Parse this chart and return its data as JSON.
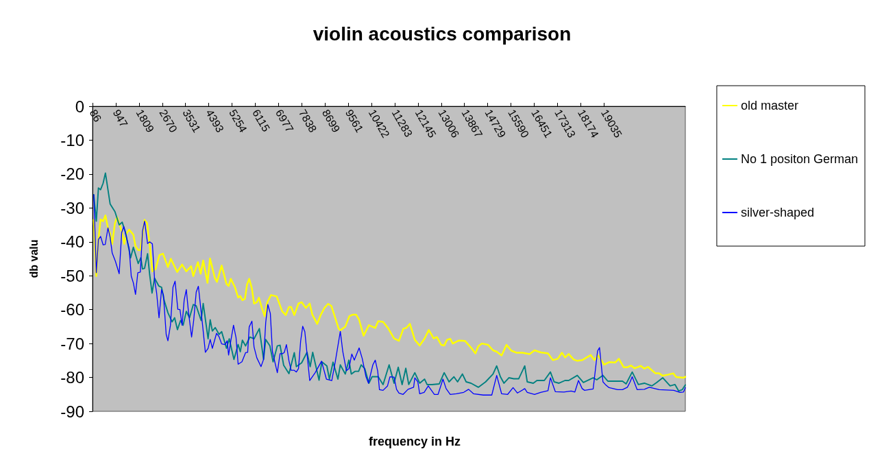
{
  "chart_data": {
    "type": "line",
    "title": "violin acoustics comparison",
    "xlabel": "frequency in Hz",
    "ylabel": "db valu",
    "xlim": [
      86,
      22050
    ],
    "xticks": [
      86,
      947,
      1809,
      2670,
      3531,
      4393,
      5254,
      6115,
      6977,
      7838,
      8699,
      9561,
      10422,
      11283,
      12145,
      13006,
      13867,
      14729,
      15590,
      16451,
      17313,
      18174,
      19035
    ],
    "ylim": [
      -90,
      0
    ],
    "yticks": [
      0,
      -10,
      -20,
      -30,
      -40,
      -50,
      -60,
      -70,
      -80,
      -90
    ],
    "grid": false,
    "legend": "right",
    "marker": "none",
    "line_style": "solid",
    "series": [
      {
        "name": "old master",
        "color": "#ffff00",
        "x": [
          133,
          227,
          291,
          385,
          479,
          564,
          658,
          738,
          815,
          917,
          997,
          1168,
          1262,
          1340,
          1444,
          1599,
          1679,
          1780,
          1858,
          2015,
          2109,
          2187,
          2305,
          2422,
          2564,
          2698,
          2879,
          2987,
          3091,
          3222,
          3404,
          3561,
          3740,
          3820,
          3992,
          4093,
          4187,
          4345,
          4439,
          4620,
          4698,
          4870,
          5050,
          5128,
          5208,
          5364,
          5481,
          5561,
          5639,
          5733,
          5811,
          5891,
          5992,
          6070,
          6173,
          6251,
          6361,
          6463,
          6564,
          6698,
          6910,
          7114,
          7246,
          7364,
          7444,
          7561,
          7717,
          7834,
          7992,
          8133,
          8227,
          8409,
          8545,
          8679,
          8815,
          8933,
          9086,
          9204,
          9267,
          9451,
          9604,
          9722,
          9856,
          9964,
          10129,
          10326,
          10444,
          10562,
          10670,
          10851,
          11032,
          11258,
          11439,
          11604,
          11710,
          11846,
          12027,
          12208,
          12390,
          12545,
          12726,
          12844,
          13006,
          13115,
          13223,
          13340,
          13432,
          13658,
          13884,
          14110,
          14272,
          14380,
          14517,
          14743,
          14924,
          15061,
          15242,
          15423,
          15604,
          15785,
          16011,
          16282,
          16463,
          16689,
          16962,
          17141,
          17322,
          17477,
          17595,
          17729,
          17910,
          18047,
          18228,
          18546,
          18680,
          18816,
          19042,
          19223,
          19449,
          19586,
          19767,
          19903,
          20040,
          20174,
          20400,
          20534,
          20670,
          20943,
          21080,
          21214,
          21395,
          21604,
          21712,
          21983,
          22050
        ],
        "values": [
          -33.5,
          -50.1,
          -40.3,
          -33.4,
          -33.9,
          -32.2,
          -35.9,
          -37.6,
          -40.6,
          -34.5,
          -32.7,
          -36.9,
          -40.6,
          -37.6,
          -36.4,
          -37.9,
          -41.3,
          -42.4,
          -42.4,
          -33.5,
          -34.5,
          -39.6,
          -48.7,
          -48,
          -43.9,
          -43.5,
          -47.4,
          -45,
          -46.7,
          -48.9,
          -46.7,
          -48.7,
          -47.2,
          -50.1,
          -46,
          -49.4,
          -45.5,
          -52.1,
          -44.9,
          -50.7,
          -51.8,
          -47,
          -52.4,
          -53,
          -50.9,
          -53.4,
          -56.4,
          -56,
          -57.2,
          -56.8,
          -52.6,
          -50.9,
          -53.8,
          -58.2,
          -57.8,
          -56.5,
          -59.5,
          -61.9,
          -57.8,
          -55.7,
          -56.1,
          -60.5,
          -61.6,
          -59.2,
          -59.2,
          -61.6,
          -58.2,
          -57.8,
          -59.5,
          -58.2,
          -61.4,
          -64.2,
          -61.5,
          -59.5,
          -58.3,
          -58.9,
          -62.6,
          -65.6,
          -66.1,
          -65,
          -61.9,
          -61.5,
          -61.5,
          -63,
          -67.7,
          -64.6,
          -65,
          -65.4,
          -63.4,
          -63.6,
          -65.4,
          -68.5,
          -69.2,
          -65.6,
          -65.4,
          -64.2,
          -68.9,
          -70.6,
          -68.5,
          -66,
          -68.5,
          -68.1,
          -70.4,
          -70.6,
          -68.9,
          -68.6,
          -70,
          -69.1,
          -69.2,
          -71.2,
          -72.9,
          -70.8,
          -70,
          -70.4,
          -72,
          -72.4,
          -73.5,
          -70.4,
          -72.1,
          -72.7,
          -72.7,
          -73.1,
          -72,
          -72.6,
          -72.9,
          -74.9,
          -74.5,
          -72.7,
          -74.1,
          -73.1,
          -74.7,
          -75.1,
          -74.9,
          -73.4,
          -74.9,
          -73.5,
          -76.2,
          -75.5,
          -75.6,
          -74.5,
          -77,
          -77,
          -76.5,
          -77.3,
          -76.6,
          -77.4,
          -76.9,
          -78.8,
          -78.8,
          -79.5,
          -79.2,
          -78.8,
          -79.9,
          -80.1,
          -79.8
        ]
      },
      {
        "name": "No 1 positon German",
        "color": "#008080",
        "x": [
          133,
          227,
          305,
          385,
          479,
          564,
          738,
          917,
          1074,
          1185,
          1309,
          1498,
          1599,
          1780,
          1874,
          1938,
          2015,
          2126,
          2204,
          2291,
          2385,
          2540,
          2644,
          2738,
          2879,
          3034,
          3128,
          3232,
          3349,
          3444,
          3561,
          3679,
          3820,
          3928,
          4110,
          4187,
          4368,
          4446,
          4526,
          4634,
          4775,
          4870,
          5050,
          5152,
          5326,
          5481,
          5561,
          5639,
          5757,
          5914,
          6070,
          6267,
          6423,
          6503,
          6658,
          6776,
          6933,
          7034,
          7168,
          7364,
          7561,
          7639,
          7834,
          8032,
          8150,
          8244,
          8479,
          8580,
          8768,
          8863,
          8997,
          9178,
          9267,
          9451,
          9585,
          9674,
          9811,
          9945,
          10039,
          10173,
          10326,
          10444,
          10670,
          10851,
          11075,
          11258,
          11413,
          11557,
          11693,
          11802,
          12027,
          12208,
          12390,
          12482,
          12663,
          12934,
          13115,
          13296,
          13475,
          13611,
          13792,
          13929,
          14110,
          14380,
          14651,
          14924,
          15061,
          15197,
          15331,
          15512,
          15694,
          15875,
          16101,
          16192,
          16416,
          16553,
          16825,
          17051,
          17188,
          17369,
          17593,
          17729,
          18047,
          18273,
          18635,
          18769,
          18997,
          19178,
          19722,
          19856,
          20082,
          20310,
          20534,
          20807,
          20988,
          21214,
          21486,
          21668,
          21802,
          21939,
          22050
        ],
        "values": [
          -26.1,
          -33.9,
          -24.1,
          -24.6,
          -22.7,
          -19.7,
          -28.8,
          -31.1,
          -35,
          -34.2,
          -37.2,
          -44.7,
          -41.6,
          -46.4,
          -44.7,
          -48,
          -47.8,
          -43.5,
          -49.7,
          -55.1,
          -50.7,
          -53,
          -53.4,
          -57.2,
          -60.9,
          -63.6,
          -62.4,
          -65.9,
          -63.2,
          -64.6,
          -60.5,
          -62.4,
          -58.5,
          -58.9,
          -63.2,
          -58.2,
          -68.6,
          -63,
          -66.3,
          -65.3,
          -67.3,
          -66.5,
          -71.4,
          -68.6,
          -74.7,
          -70.3,
          -72.4,
          -69,
          -70.7,
          -68.1,
          -68.6,
          -65.6,
          -74.7,
          -68.8,
          -70.7,
          -75.4,
          -70.7,
          -70.5,
          -76.4,
          -78.9,
          -72.7,
          -76.8,
          -75.7,
          -72.6,
          -76.8,
          -72.6,
          -80.8,
          -75.4,
          -76.6,
          -80.5,
          -75.5,
          -80.5,
          -76.3,
          -79,
          -74.9,
          -79,
          -78.2,
          -78.2,
          -76.3,
          -77.4,
          -81.7,
          -79.8,
          -79.8,
          -82.1,
          -76.3,
          -81.7,
          -77,
          -82.1,
          -77.3,
          -82.1,
          -78.6,
          -81.7,
          -80.5,
          -82.1,
          -82.1,
          -81.9,
          -78.6,
          -81.3,
          -79.8,
          -81.3,
          -79,
          -81.3,
          -81.7,
          -82.9,
          -81.3,
          -79,
          -76.6,
          -79.8,
          -81.7,
          -80.1,
          -80.4,
          -80.4,
          -76.6,
          -81.3,
          -81.7,
          -80.9,
          -80.9,
          -78.4,
          -81.3,
          -81.7,
          -80.9,
          -80.9,
          -79.4,
          -81.5,
          -80.1,
          -80.7,
          -79.4,
          -81.1,
          -81.1,
          -81.9,
          -78.4,
          -82.1,
          -81.7,
          -82.5,
          -81.5,
          -80.1,
          -82.5,
          -82.1,
          -84,
          -83.6,
          -82.2
        ]
      },
      {
        "name": "silver-shaped",
        "color": "#0000ff",
        "x": [
          133,
          227,
          305,
          385,
          479,
          556,
          658,
          738,
          815,
          933,
          1074,
          1168,
          1246,
          1340,
          1444,
          1521,
          1599,
          1679,
          1764,
          1858,
          1938,
          2015,
          2126,
          2204,
          2305,
          2385,
          2462,
          2550,
          2644,
          2714,
          2815,
          2879,
          2973,
          3067,
          3145,
          3246,
          3326,
          3404,
          3481,
          3561,
          3639,
          3757,
          3834,
          3928,
          4008,
          4164,
          4267,
          4368,
          4446,
          4526,
          4681,
          4775,
          4870,
          4997,
          5074,
          5128,
          5208,
          5310,
          5404,
          5481,
          5622,
          5757,
          5834,
          5891,
          5992,
          6070,
          6173,
          6328,
          6423,
          6503,
          6580,
          6674,
          6752,
          6933,
          7034,
          7128,
          7192,
          7270,
          7364,
          7444,
          7561,
          7639,
          7717,
          7797,
          7874,
          7952,
          8133,
          8336,
          8571,
          8752,
          8952,
          9086,
          9267,
          9359,
          9493,
          9585,
          9693,
          9785,
          9964,
          10082,
          10218,
          10310,
          10472,
          10562,
          10653,
          10717,
          10851,
          11016,
          11105,
          11258,
          11350,
          11439,
          11594,
          11776,
          11983,
          12027,
          12138,
          12208,
          12373,
          12526,
          12752,
          12889,
          13070,
          13187,
          13340,
          13566,
          13839,
          14020,
          14199,
          14562,
          14879,
          15061,
          15242,
          15468,
          15668,
          15830,
          16101,
          16192,
          16463,
          16689,
          16962,
          17051,
          17232,
          17550,
          17820,
          17957,
          18091,
          18228,
          18318,
          18635,
          18798,
          18871,
          18998,
          19087,
          19223,
          19541,
          19722,
          19903,
          19993,
          20082,
          20263,
          20534,
          20717,
          21080,
          21621,
          21847,
          21983,
          22050
        ],
        "values": [
          -26.1,
          -49.1,
          -39.3,
          -38.4,
          -40.9,
          -40.8,
          -35.9,
          -38.6,
          -43.3,
          -45.7,
          -49.4,
          -37.2,
          -35.5,
          -38.6,
          -42,
          -50.1,
          -52.1,
          -55.5,
          -49.1,
          -48.9,
          -36.9,
          -33.9,
          -40.5,
          -40,
          -40.6,
          -51.1,
          -55.1,
          -62.4,
          -54.1,
          -55.7,
          -67.3,
          -69.2,
          -64.6,
          -53.4,
          -51.6,
          -59.9,
          -60,
          -64.6,
          -57.2,
          -54.1,
          -60.5,
          -68.1,
          -63.2,
          -54.8,
          -53.1,
          -64.6,
          -72.6,
          -71.4,
          -68.8,
          -71.4,
          -67,
          -68,
          -70.1,
          -70.3,
          -69.2,
          -73.4,
          -69.3,
          -64.6,
          -68.3,
          -76.1,
          -75.4,
          -72.7,
          -72.6,
          -65.1,
          -63.4,
          -71,
          -74.2,
          -76.8,
          -74.7,
          -63.8,
          -58.5,
          -61.1,
          -72.4,
          -78.6,
          -73,
          -73,
          -72.6,
          -70.3,
          -75.1,
          -77.9,
          -77.9,
          -78.4,
          -77.4,
          -69.3,
          -64.9,
          -66.5,
          -80.9,
          -78.6,
          -75.2,
          -80.5,
          -80.9,
          -75.1,
          -66.4,
          -72.4,
          -78,
          -77.4,
          -73.1,
          -74.9,
          -71.3,
          -74.5,
          -79.8,
          -81.7,
          -76.3,
          -74.9,
          -78.2,
          -83.6,
          -83.8,
          -82.5,
          -79.8,
          -79.9,
          -83.5,
          -84.6,
          -85,
          -83.5,
          -82.9,
          -80.1,
          -81.3,
          -84.8,
          -84.4,
          -82.5,
          -85,
          -85,
          -80.5,
          -83.3,
          -85,
          -84.8,
          -84.4,
          -83.5,
          -84.8,
          -85.2,
          -85.2,
          -79.4,
          -84.8,
          -85,
          -83,
          -84.6,
          -83.3,
          -84.4,
          -85,
          -84.4,
          -83.9,
          -80.1,
          -84.2,
          -84.3,
          -84,
          -84.3,
          -80.9,
          -83.3,
          -83.8,
          -83.4,
          -72.2,
          -71.2,
          -81.3,
          -82.1,
          -83,
          -83.6,
          -83.6,
          -82.9,
          -81.5,
          -79.8,
          -83.6,
          -83.5,
          -82.9,
          -83.6,
          -83.8,
          -84.4,
          -84.3,
          -83
        ]
      }
    ]
  }
}
